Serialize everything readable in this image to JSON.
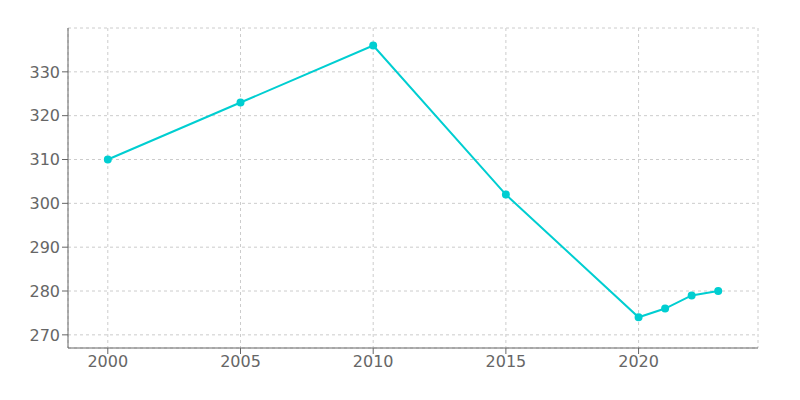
{
  "chart_data": {
    "type": "line",
    "x": [
      2000,
      2005,
      2010,
      2015,
      2020,
      2021,
      2022,
      2023
    ],
    "values": [
      310,
      323,
      336,
      302,
      274,
      276,
      279,
      280
    ],
    "color": "#00CED1",
    "marker": "circle",
    "xlim": [
      1998.5,
      2024.5
    ],
    "xticks": [
      2000,
      2005,
      2010,
      2015,
      2020
    ],
    "ylim": [
      267,
      340
    ],
    "yticks": [
      270,
      280,
      290,
      300,
      310,
      320,
      330
    ],
    "grid": true
  }
}
